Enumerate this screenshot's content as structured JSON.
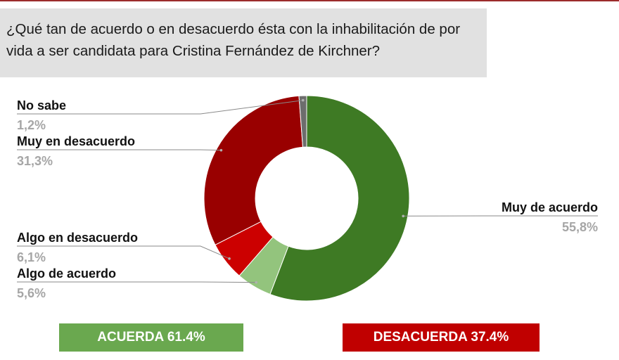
{
  "question": "¿Qué tan de acuerdo o en desacuerdo ésta con la inhabilitación de por vida a ser candidata para Cristina Fernández de Kirchner?",
  "chart_data": {
    "type": "pie",
    "donut": true,
    "slices": [
      {
        "label": "Muy de acuerdo",
        "value": 55.8,
        "display": "55,8%",
        "color": "#3e7a24"
      },
      {
        "label": "Algo de acuerdo",
        "value": 5.6,
        "display": "5,6%",
        "color": "#93c47d"
      },
      {
        "label": "Algo en desacuerdo",
        "value": 6.1,
        "display": "6,1%",
        "color": "#cc0000"
      },
      {
        "label": "Muy en desacuerdo",
        "value": 31.3,
        "display": "31,3%",
        "color": "#990000"
      },
      {
        "label": "No sabe",
        "value": 1.2,
        "display": "1,2%",
        "color": "#6d6d6d"
      }
    ]
  },
  "summary": {
    "agree": "ACUERDA 61.4%",
    "disagree": "DESACUERDA 37.4%"
  },
  "colors": {
    "agree": "#6aa84f",
    "disagree": "#c00000",
    "label_line": "#8a8a8a",
    "percent_text": "#a6a6a6"
  }
}
